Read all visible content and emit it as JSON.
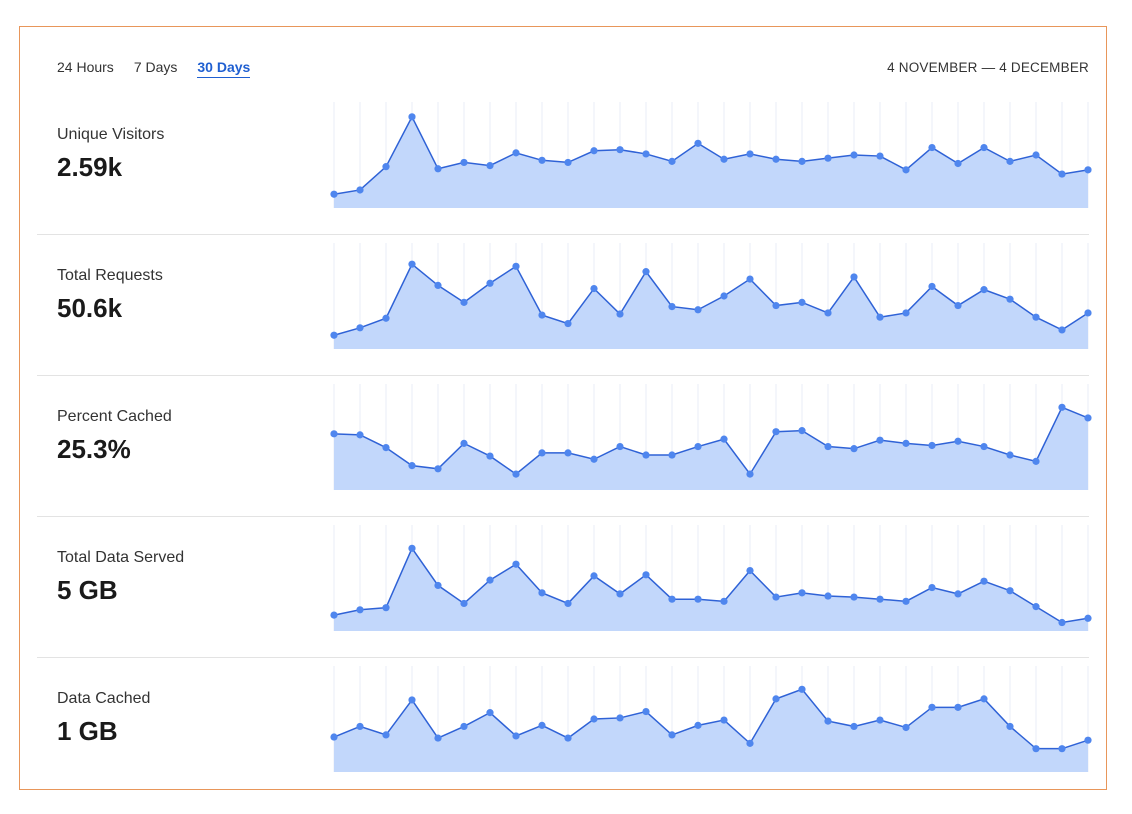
{
  "tabs": [
    {
      "label": "24 Hours",
      "active": false
    },
    {
      "label": "7 Days",
      "active": false
    },
    {
      "label": "30 Days",
      "active": true
    }
  ],
  "date_range": "4 NOVEMBER — 4 DECEMBER",
  "colors": {
    "line": "#2f62d6",
    "point": "#4f86ee",
    "fill": "#c2d7fb",
    "grid": "#e8edf7",
    "frame": "#e8965a"
  },
  "metrics": [
    {
      "label": "Unique Visitors",
      "value": "2.59k"
    },
    {
      "label": "Total Requests",
      "value": "50.6k"
    },
    {
      "label": "Percent Cached",
      "value": "25.3%"
    },
    {
      "label": "Total Data Served",
      "value": "5 GB"
    },
    {
      "label": "Data Cached",
      "value": "1 GB"
    }
  ],
  "chart_data": [
    {
      "type": "area",
      "series": [
        {
          "name": "Unique Visitors",
          "values": [
            13,
            17,
            39,
            86,
            37,
            43,
            40,
            52,
            45,
            43,
            54,
            55,
            51,
            44,
            61,
            46,
            51,
            46,
            44,
            47,
            50,
            49,
            36,
            57,
            42,
            57,
            44,
            50,
            32,
            36
          ]
        }
      ]
    },
    {
      "type": "area",
      "series": [
        {
          "name": "Total Requests",
          "values": [
            13,
            20,
            29,
            80,
            60,
            44,
            62,
            78,
            32,
            24,
            57,
            33,
            73,
            40,
            37,
            50,
            66,
            41,
            44,
            34,
            68,
            30,
            34,
            59,
            41,
            56,
            47,
            30,
            18,
            34
          ]
        }
      ]
    },
    {
      "type": "area",
      "series": [
        {
          "name": "Percent Cached",
          "values": [
            53,
            52,
            40,
            23,
            20,
            44,
            32,
            15,
            35,
            35,
            29,
            41,
            33,
            33,
            41,
            48,
            15,
            55,
            56,
            41,
            39,
            47,
            44,
            42,
            46,
            41,
            33,
            27,
            78,
            68
          ]
        }
      ]
    },
    {
      "type": "area",
      "series": [
        {
          "name": "Total Data Served",
          "values": [
            15,
            20,
            22,
            78,
            43,
            26,
            48,
            63,
            36,
            26,
            52,
            35,
            53,
            30,
            30,
            28,
            57,
            32,
            36,
            33,
            32,
            30,
            28,
            41,
            35,
            47,
            38,
            23,
            8,
            12
          ]
        }
      ]
    },
    {
      "type": "area",
      "series": [
        {
          "name": "Data Cached",
          "values": [
            33,
            43,
            35,
            68,
            32,
            43,
            56,
            34,
            44,
            32,
            50,
            51,
            57,
            35,
            44,
            49,
            27,
            69,
            78,
            48,
            43,
            49,
            42,
            61,
            61,
            69,
            43,
            22,
            22,
            30
          ]
        }
      ]
    }
  ]
}
